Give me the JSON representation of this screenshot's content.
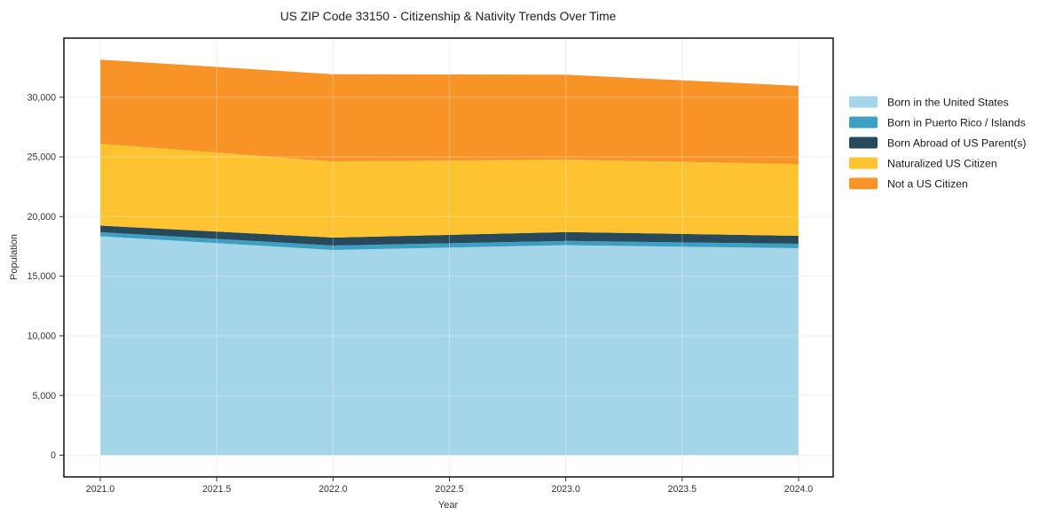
{
  "figure": {
    "title": "US ZIP Code 33150 - Citizenship & Nativity Trends Over Time",
    "xlabel": "Year",
    "ylabel": "Population"
  },
  "chart_data": {
    "type": "area",
    "stacked": true,
    "title": "US ZIP Code 33150 - Citizenship & Nativity Trends Over Time",
    "xlabel": "Year",
    "ylabel": "Population",
    "grid": true,
    "legend_position": "right-outside",
    "x": [
      2021,
      2022,
      2023,
      2024
    ],
    "series": [
      {
        "name": "Born in the United States",
        "color": "#a5d5e8",
        "values": [
          18350,
          17200,
          17600,
          17350
        ]
      },
      {
        "name": "Born in Puerto Rico / Islands",
        "color": "#3da0c2",
        "values": [
          340,
          370,
          360,
          370
        ]
      },
      {
        "name": "Born Abroad of US Parent(s)",
        "color": "#264a5b",
        "values": [
          550,
          670,
          740,
          670
        ]
      },
      {
        "name": "Naturalized US Citizen",
        "color": "#fdc330",
        "values": [
          6860,
          6380,
          6070,
          6010
        ]
      },
      {
        "name": "Not a US Citizen",
        "color": "#f79327",
        "values": [
          7050,
          7310,
          7120,
          6550
        ]
      }
    ],
    "totals": [
      33150,
      31930,
      31890,
      30950
    ],
    "xlim": [
      2021,
      2024
    ],
    "ylim": [
      0,
      35000
    ],
    "x_ticks": {
      "values": [
        2021,
        2021.5,
        2022,
        2022.5,
        2023,
        2023.5,
        2024
      ],
      "labels": [
        "2021.0",
        "2021.5",
        "2022.0",
        "2022.5",
        "2023.0",
        "2023.5",
        "2024.0"
      ]
    },
    "y_ticks": {
      "values": [
        0,
        5000,
        10000,
        15000,
        20000,
        25000,
        30000
      ],
      "labels": [
        "0",
        "5,000",
        "10,000",
        "15,000",
        "20,000",
        "25,000",
        "30,000"
      ]
    }
  }
}
